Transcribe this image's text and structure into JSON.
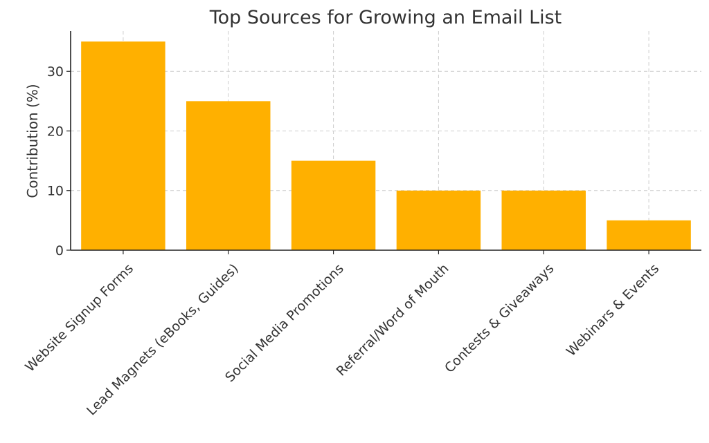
{
  "chart_data": {
    "type": "bar",
    "title": "Top Sources for Growing an Email List",
    "xlabel": "",
    "ylabel": "Contribution (%)",
    "categories": [
      "Website Signup Forms",
      "Lead Magnets (eBooks, Guides)",
      "Social Media Promotions",
      "Referral/Word of Mouth",
      "Contests & Giveaways",
      "Webinars & Events"
    ],
    "values": [
      35,
      25,
      15,
      10,
      10,
      5
    ],
    "ylim": [
      0,
      36.75
    ],
    "yticks": [
      0,
      10,
      20,
      30
    ],
    "grid": true,
    "bar_color": "#FFB000"
  }
}
